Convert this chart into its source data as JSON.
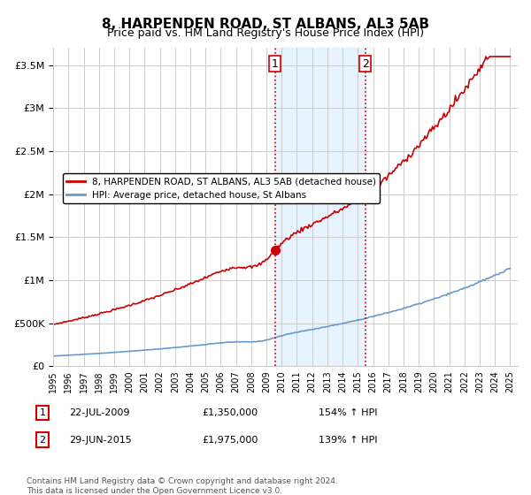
{
  "title": "8, HARPENDEN ROAD, ST ALBANS, AL3 5AB",
  "subtitle": "Price paid vs. HM Land Registry's House Price Index (HPI)",
  "ylabel_ticks": [
    "£0",
    "£500K",
    "£1M",
    "£1.5M",
    "£2M",
    "£2.5M",
    "£3M",
    "£3.5M"
  ],
  "ylim": [
    0,
    3700000
  ],
  "yticks": [
    0,
    500000,
    1000000,
    1500000,
    2000000,
    2500000,
    3000000,
    3500000
  ],
  "transaction1": {
    "date_num": 2009.55,
    "price": 1350000,
    "label": "1",
    "date_str": "22-JUL-2009",
    "pct": "154%"
  },
  "transaction2": {
    "date_num": 2015.49,
    "price": 1975000,
    "label": "2",
    "date_str": "29-JUN-2015",
    "pct": "139%"
  },
  "legend_line1": "8, HARPENDEN ROAD, ST ALBANS, AL3 5AB (detached house)",
  "legend_line2": "HPI: Average price, detached house, St Albans",
  "footnote": "Contains HM Land Registry data © Crown copyright and database right 2024.\nThis data is licensed under the Open Government Licence v3.0.",
  "table_row1": "1    22-JUL-2009    £1,350,000    154% ↑ HPI",
  "table_row2": "2    29-JUN-2015    £1,975,000    139% ↑ HPI",
  "red_color": "#cc0000",
  "blue_color": "#6699cc",
  "shade_color": "#ddeeff",
  "grid_color": "#cccccc",
  "background_color": "#ffffff"
}
